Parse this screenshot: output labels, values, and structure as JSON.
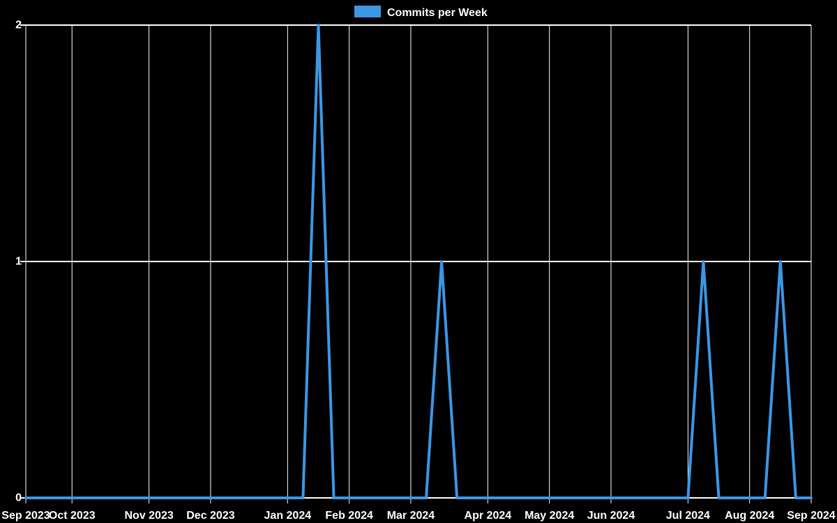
{
  "page": {
    "background": "#000000"
  },
  "legend": {
    "label": "Commits per Week",
    "swatch_color": "#3c97e5"
  },
  "chart_data": {
    "type": "line",
    "title": "",
    "xlabel": "",
    "ylabel": "",
    "grid": true,
    "legend_position": "top-center",
    "ylim": [
      0,
      2
    ],
    "y_ticks": [
      0,
      1,
      2
    ],
    "x_unit": "week",
    "x_ticks": [
      {
        "label": "Sep 2023",
        "week": 0
      },
      {
        "label": "Oct 2023",
        "week": 3
      },
      {
        "label": "Nov 2023",
        "week": 8
      },
      {
        "label": "Dec 2023",
        "week": 12
      },
      {
        "label": "Jan 2024",
        "week": 17
      },
      {
        "label": "Feb 2024",
        "week": 21
      },
      {
        "label": "Mar 2024",
        "week": 25
      },
      {
        "label": "Apr 2024",
        "week": 30
      },
      {
        "label": "May 2024",
        "week": 34
      },
      {
        "label": "Jun 2024",
        "week": 38
      },
      {
        "label": "Jul 2024",
        "week": 43
      },
      {
        "label": "Aug 2024",
        "week": 47
      },
      {
        "label": "Sep 2024",
        "week": 51
      }
    ],
    "series": [
      {
        "name": "Commits per Week",
        "color": "#3c97e5",
        "values": [
          0,
          0,
          0,
          0,
          0,
          0,
          0,
          0,
          0,
          0,
          0,
          0,
          0,
          0,
          0,
          0,
          0,
          0,
          0,
          2,
          0,
          0,
          0,
          0,
          0,
          0,
          0,
          1,
          0,
          0,
          0,
          0,
          0,
          0,
          0,
          0,
          0,
          0,
          0,
          0,
          0,
          0,
          0,
          0,
          1,
          0,
          0,
          0,
          0,
          1,
          0,
          0
        ]
      }
    ],
    "colors": {
      "background": "#000000",
      "grid": "#ffffff",
      "text": "#ffffff",
      "line": "#3c97e5"
    }
  }
}
